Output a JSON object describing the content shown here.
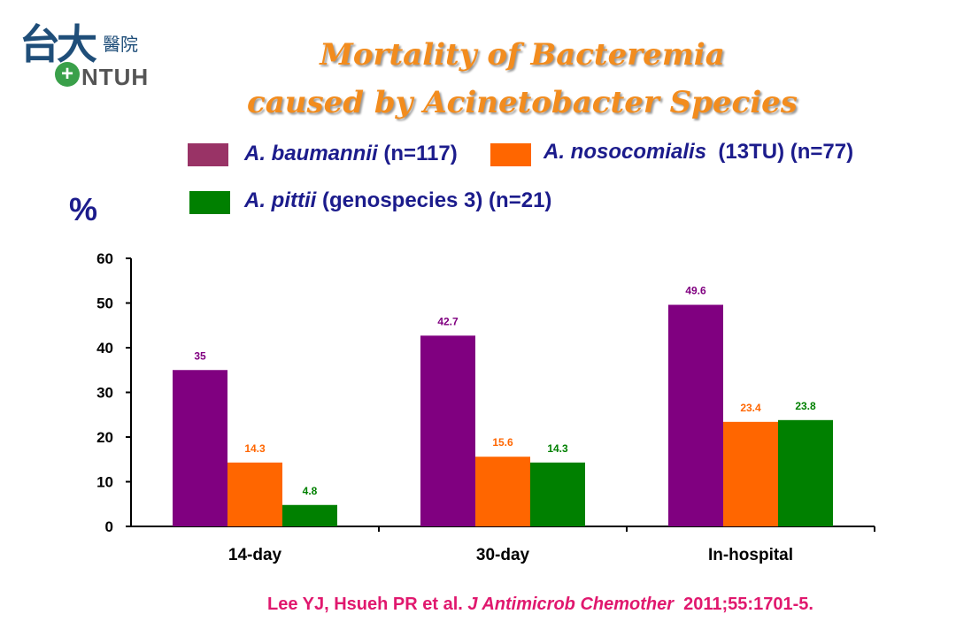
{
  "logo": {
    "mark": "台大",
    "hospital": "醫院",
    "acronym": "NTUH",
    "cross": "+"
  },
  "title": {
    "line1": "Mortality of Bacteremia",
    "line2": "caused by Acinetobacter Species"
  },
  "legend": [
    {
      "species": "A. baumannii",
      "detail": " (n=117)",
      "color": "#993366"
    },
    {
      "species": "A. nosocomialis",
      "detail": "  (13TU) (n=77)",
      "color": "#ff6600"
    },
    {
      "species": "A. pittii",
      "detail": " (genospecies 3) (n=21)",
      "color": "#008000"
    }
  ],
  "y_unit": "%",
  "citation": {
    "authors": "Lee YJ, Hsueh PR et al. ",
    "journal": "J Antimicrob Chemother",
    "ref": "  2011;55:1701-5."
  },
  "chart_data": {
    "type": "bar",
    "categories": [
      "14-day",
      "30-day",
      "In-hospital"
    ],
    "series": [
      {
        "name": "A. baumannii",
        "values": [
          35,
          42.7,
          49.6
        ],
        "color": "#800080",
        "label_color": "#800080"
      },
      {
        "name": "A. nosocomialis",
        "values": [
          14.3,
          15.6,
          23.4
        ],
        "color": "#ff6600",
        "label_color": "#ff6600"
      },
      {
        "name": "A. pittii",
        "values": [
          4.8,
          14.3,
          23.8
        ],
        "color": "#008000",
        "label_color": "#008000"
      }
    ],
    "value_labels": [
      [
        "35",
        "42.7",
        "49.6"
      ],
      [
        "14.3",
        "15.6",
        "23.4"
      ],
      [
        "4.8",
        "14.3",
        "23.8"
      ]
    ],
    "ylabel": "%",
    "ylim": [
      0,
      60
    ],
    "yticks": [
      0,
      10,
      20,
      30,
      40,
      50,
      60
    ],
    "grid": false,
    "legend_position": "top"
  }
}
